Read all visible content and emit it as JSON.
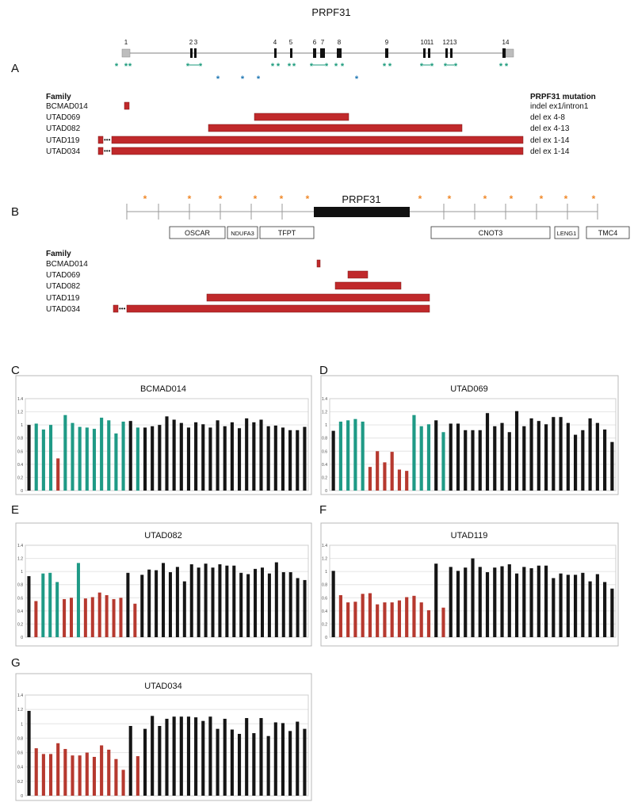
{
  "panelA": {
    "label": "A",
    "title": "PRPF31",
    "exon_labels": [
      "1",
      "2",
      "3",
      "4",
      "5",
      "6",
      "7",
      "8",
      "9",
      "10",
      "11",
      "12",
      "13",
      "14"
    ],
    "family_header": "Family",
    "mutation_header": "PRPF31 mutation",
    "families": [
      {
        "name": "BCMAD014",
        "mutation": "indel ex1/intron1"
      },
      {
        "name": "UTAD069",
        "mutation": "del ex 4-8"
      },
      {
        "name": "UTAD082",
        "mutation": "del ex 4-13"
      },
      {
        "name": "UTAD119",
        "mutation": "del ex 1-14"
      },
      {
        "name": "UTAD034",
        "mutation": "del ex 1-14"
      }
    ],
    "colors": {
      "deletion": "#c0292b",
      "probe_green": "#1a9a7b",
      "probe_blue": "#1f77b4",
      "exon": "#111111"
    }
  },
  "panelB": {
    "label": "B",
    "gene_label": "PRPF31",
    "genes": [
      "OSCAR",
      "NDUFA3",
      "TFPT",
      "CNOT3",
      "LENG1",
      "TMC4"
    ],
    "family_header": "Family",
    "families": [
      "BCMAD014",
      "UTAD069",
      "UTAD082",
      "UTAD119",
      "UTAD034"
    ],
    "colors": {
      "probe_orange": "#f0892a",
      "deletion": "#c0292b"
    }
  },
  "chart_data": [
    {
      "panel": "C",
      "title": "BCMAD014",
      "type": "bar",
      "ylim": [
        0,
        1.4
      ],
      "ytick_labels": [
        "0",
        "0.2",
        "0.4",
        "0.6",
        "0.8",
        "1",
        "1.2",
        "1.4"
      ],
      "values": [
        1.0,
        1.02,
        0.93,
        1.0,
        0.49,
        1.15,
        1.03,
        0.97,
        0.96,
        0.94,
        1.11,
        1.07,
        0.87,
        1.05,
        1.06,
        0.96,
        0.96,
        0.98,
        1.0,
        1.13,
        1.08,
        1.03,
        0.96,
        1.04,
        1.01,
        0.96,
        1.07,
        0.98,
        1.04,
        0.95,
        1.1,
        1.04,
        1.08,
        0.98,
        0.99,
        0.96,
        0.92,
        0.92,
        0.97
      ],
      "colors": [
        "k",
        "g",
        "g",
        "g",
        "r",
        "g",
        "g",
        "g",
        "g",
        "g",
        "g",
        "g",
        "g",
        "g",
        "k",
        "g",
        "k",
        "k",
        "k",
        "k",
        "k",
        "k",
        "k",
        "k",
        "k",
        "k",
        "k",
        "k",
        "k",
        "k",
        "k",
        "k",
        "k",
        "k",
        "k",
        "k",
        "k",
        "k",
        "k"
      ]
    },
    {
      "panel": "D",
      "title": "UTAD069",
      "type": "bar",
      "ylim": [
        0,
        1.4
      ],
      "ytick_labels": [
        "0",
        "0.2",
        "0.4",
        "0.6",
        "0.8",
        "1",
        "1.2",
        "1.4"
      ],
      "values": [
        0.91,
        1.05,
        1.07,
        1.09,
        1.05,
        0.36,
        0.6,
        0.43,
        0.59,
        0.32,
        0.3,
        1.15,
        0.98,
        1.01,
        1.07,
        0.89,
        1.02,
        1.02,
        0.92,
        0.92,
        0.92,
        1.18,
        0.98,
        1.03,
        0.89,
        1.21,
        0.98,
        1.1,
        1.06,
        1.01,
        1.12,
        1.12,
        1.03,
        0.85,
        0.92,
        1.1,
        1.03,
        0.93,
        0.74
      ],
      "colors": [
        "k",
        "g",
        "g",
        "g",
        "g",
        "r",
        "r",
        "r",
        "r",
        "r",
        "r",
        "g",
        "g",
        "g",
        "k",
        "g",
        "k",
        "k",
        "k",
        "k",
        "k",
        "k",
        "k",
        "k",
        "k",
        "k",
        "k",
        "k",
        "k",
        "k",
        "k",
        "k",
        "k",
        "k",
        "k",
        "k",
        "k",
        "k",
        "k"
      ]
    },
    {
      "panel": "E",
      "title": "UTAD082",
      "type": "bar",
      "ylim": [
        0,
        1.4
      ],
      "ytick_labels": [
        "0",
        "0.2",
        "0.4",
        "0.6",
        "0.8",
        "1",
        "1.2",
        "1.4"
      ],
      "values": [
        0.93,
        0.55,
        0.97,
        0.98,
        0.84,
        0.58,
        0.6,
        1.13,
        0.59,
        0.61,
        0.68,
        0.64,
        0.58,
        0.6,
        0.98,
        0.51,
        0.95,
        1.03,
        1.02,
        1.13,
        0.99,
        1.07,
        0.85,
        1.11,
        1.06,
        1.12,
        1.06,
        1.11,
        1.09,
        1.09,
        0.98,
        0.96,
        1.04,
        1.06,
        0.97,
        1.14,
        0.99,
        0.99,
        0.9,
        0.87
      ],
      "colors": [
        "k",
        "r",
        "g",
        "g",
        "g",
        "r",
        "r",
        "g",
        "r",
        "r",
        "r",
        "r",
        "r",
        "r",
        "k",
        "r",
        "k",
        "k",
        "k",
        "k",
        "k",
        "k",
        "k",
        "k",
        "k",
        "k",
        "k",
        "k",
        "k",
        "k",
        "k",
        "k",
        "k",
        "k",
        "k",
        "k",
        "k",
        "k",
        "k",
        "k"
      ]
    },
    {
      "panel": "F",
      "title": "UTAD119",
      "type": "bar",
      "ylim": [
        0,
        1.4
      ],
      "ytick_labels": [
        "0",
        "0.2",
        "0.4",
        "0.6",
        "0.8",
        "1",
        "1.2",
        "1.4"
      ],
      "values": [
        1.01,
        0.64,
        0.53,
        0.54,
        0.66,
        0.67,
        0.5,
        0.53,
        0.53,
        0.56,
        0.61,
        0.63,
        0.53,
        0.41,
        1.12,
        0.45,
        1.07,
        1.01,
        1.06,
        1.2,
        1.07,
        0.99,
        1.06,
        1.08,
        1.11,
        0.97,
        1.07,
        1.05,
        1.09,
        1.09,
        0.9,
        0.97,
        0.95,
        0.95,
        0.98,
        0.85,
        0.96,
        0.84,
        0.74
      ],
      "colors": [
        "k",
        "r",
        "r",
        "r",
        "r",
        "r",
        "r",
        "r",
        "r",
        "r",
        "r",
        "r",
        "r",
        "r",
        "k",
        "r",
        "k",
        "k",
        "k",
        "k",
        "k",
        "k",
        "k",
        "k",
        "k",
        "k",
        "k",
        "k",
        "k",
        "k",
        "k",
        "k",
        "k",
        "k",
        "k",
        "k",
        "k",
        "k",
        "k"
      ]
    },
    {
      "panel": "G",
      "title": "UTAD034",
      "type": "bar",
      "ylim": [
        0,
        1.4
      ],
      "ytick_labels": [
        "0",
        "0.2",
        "0.4",
        "0.6",
        "0.8",
        "1",
        "1.2",
        "1.4"
      ],
      "values": [
        1.18,
        0.66,
        0.58,
        0.58,
        0.73,
        0.65,
        0.56,
        0.56,
        0.6,
        0.54,
        0.7,
        0.64,
        0.51,
        0.36,
        0.97,
        0.55,
        0.93,
        1.11,
        0.97,
        1.07,
        1.1,
        1.1,
        1.1,
        1.09,
        1.04,
        1.1,
        0.93,
        1.07,
        0.92,
        0.86,
        1.08,
        0.87,
        1.08,
        0.83,
        1.02,
        1.01,
        0.9,
        1.03,
        0.93
      ],
      "colors": [
        "k",
        "r",
        "r",
        "r",
        "r",
        "r",
        "r",
        "r",
        "r",
        "r",
        "r",
        "r",
        "r",
        "r",
        "k",
        "r",
        "k",
        "k",
        "k",
        "k",
        "k",
        "k",
        "k",
        "k",
        "k",
        "k",
        "k",
        "k",
        "k",
        "k",
        "k",
        "k",
        "k",
        "k",
        "k",
        "k",
        "k",
        "k",
        "k"
      ]
    }
  ],
  "palette": {
    "k": "#151515",
    "g": "#1f9a86",
    "r": "#b6392f"
  }
}
